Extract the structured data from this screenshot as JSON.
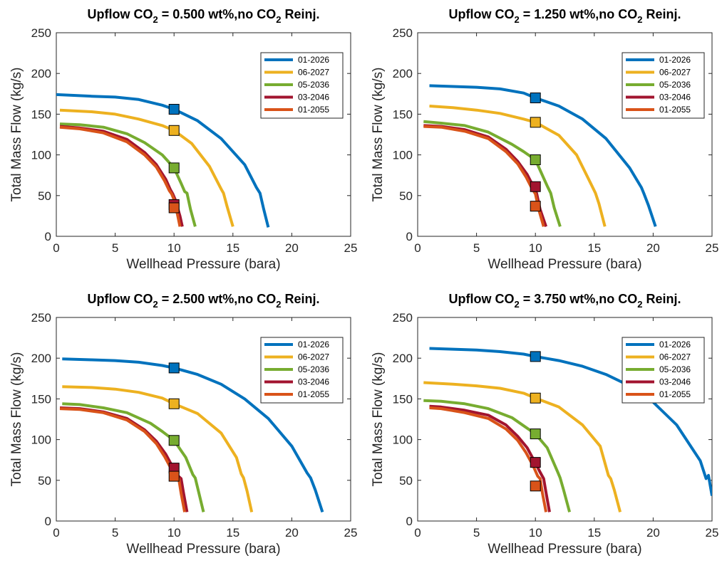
{
  "figure": {
    "title": ""
  },
  "legend_entries": [
    "01-2026",
    "06-2027",
    "05-2036",
    "03-2046",
    "01-2055"
  ],
  "series_colors": [
    "#0072BD",
    "#EDB120",
    "#77AC30",
    "#A2142F",
    "#D95319"
  ],
  "chart_data": [
    {
      "type": "line",
      "title_prefix": "Upflow CO",
      "title_sub": "2",
      "title_mid": " = 0.500 wt%,no CO",
      "title_sub2": "2",
      "title_suffix": " Reinj.",
      "xlabel": "Wellhead Pressure (bara)",
      "ylabel": "Total Mass Flow (kg/s)",
      "xlim": [
        0,
        25
      ],
      "ylim": [
        0,
        250
      ],
      "xticks": [
        0,
        5,
        10,
        15,
        20,
        25
      ],
      "yticks": [
        0,
        50,
        100,
        150,
        200,
        250
      ],
      "legend_position": "top-right",
      "series": [
        {
          "name": "01-2026",
          "x": [
            0,
            3,
            5,
            7,
            9,
            10,
            12,
            14,
            16,
            17,
            17.3,
            17.6,
            18
          ],
          "y": [
            174,
            172,
            171,
            168,
            161,
            156,
            142,
            120,
            88,
            60,
            53,
            34,
            11
          ],
          "marker": [
            10,
            156
          ]
        },
        {
          "name": "06-2027",
          "x": [
            0.3,
            3,
            5,
            7,
            9,
            10,
            11.5,
            13,
            14,
            14.2,
            14.5,
            15
          ],
          "y": [
            155,
            153,
            150,
            144,
            136,
            130,
            114,
            86,
            58,
            53,
            37,
            12
          ],
          "marker": [
            10,
            130
          ]
        },
        {
          "name": "05-2036",
          "x": [
            0.3,
            2,
            4,
            6,
            7.5,
            9,
            10,
            10.6,
            10.9,
            11.1,
            11.4,
            11.8
          ],
          "y": [
            138,
            137,
            134,
            126,
            115,
            100,
            84,
            65,
            55,
            53,
            33,
            12
          ],
          "marker": [
            10,
            84
          ]
        },
        {
          "name": "03-2046",
          "x": [
            0.3,
            2,
            4,
            6,
            7.5,
            8.5,
            9.3,
            9.7,
            9.9,
            10.1,
            10.5,
            10.7
          ],
          "y": [
            135,
            133,
            129,
            119,
            103,
            88,
            70,
            57,
            52,
            45,
            25,
            12
          ],
          "marker": [
            10,
            39
          ]
        },
        {
          "name": "01-2055",
          "x": [
            0.3,
            2,
            4,
            6,
            7.5,
            8.5,
            9.2,
            9.6,
            9.8,
            10.0,
            10.3,
            10.5
          ],
          "y": [
            134,
            132,
            127,
            116,
            100,
            85,
            68,
            56,
            52,
            45,
            26,
            12
          ],
          "marker": [
            10,
            35
          ]
        }
      ]
    },
    {
      "type": "line",
      "title_prefix": "Upflow CO",
      "title_sub": "2",
      "title_mid": " = 1.250 wt%,no CO",
      "title_sub2": "2",
      "title_suffix": " Reinj.",
      "xlabel": "Wellhead Pressure (bara)",
      "ylabel": "Total Mass Flow (kg/s)",
      "xlim": [
        0,
        25
      ],
      "ylim": [
        0,
        250
      ],
      "xticks": [
        0,
        5,
        10,
        15,
        20,
        25
      ],
      "yticks": [
        0,
        50,
        100,
        150,
        200,
        250
      ],
      "legend_position": "top-right",
      "series": [
        {
          "name": "01-2026",
          "x": [
            1,
            3,
            5,
            7,
            9,
            10,
            12,
            14,
            16,
            18,
            19,
            19.2,
            19.6,
            20.2
          ],
          "y": [
            185,
            184,
            183,
            181,
            176,
            170,
            160,
            144,
            120,
            84,
            60,
            53,
            38,
            12
          ],
          "marker": [
            10,
            170
          ]
        },
        {
          "name": "06-2027",
          "x": [
            1,
            3,
            5,
            7,
            9,
            10,
            12,
            13.5,
            14.8,
            15.1,
            15.4,
            15.9
          ],
          "y": [
            160,
            158,
            155,
            151,
            144,
            140,
            124,
            100,
            62,
            53,
            40,
            12
          ],
          "marker": [
            10,
            140
          ]
        },
        {
          "name": "05-2036",
          "x": [
            0.5,
            2,
            4,
            6,
            8,
            9,
            10,
            11,
            11.3,
            11.6,
            12.1
          ],
          "y": [
            141,
            139,
            136,
            128,
            113,
            104,
            94,
            62,
            53,
            35,
            12
          ],
          "marker": [
            10,
            94
          ]
        },
        {
          "name": "03-2046",
          "x": [
            0.5,
            2,
            4,
            6,
            7.5,
            8.5,
            9.3,
            9.8,
            10.1,
            10.4,
            10.9
          ],
          "y": [
            136,
            135,
            131,
            122,
            107,
            92,
            76,
            62,
            53,
            33,
            12
          ],
          "marker": [
            10,
            61
          ]
        },
        {
          "name": "01-2055",
          "x": [
            0.5,
            2,
            4,
            6,
            7.5,
            8.5,
            9.2,
            9.7,
            10.0,
            10.3,
            10.7
          ],
          "y": [
            135,
            134,
            129,
            120,
            104,
            89,
            73,
            59,
            52,
            32,
            12
          ],
          "marker": [
            10,
            37
          ]
        }
      ]
    },
    {
      "type": "line",
      "title_prefix": "Upflow CO",
      "title_sub": "2",
      "title_mid": " = 2.500 wt%,no CO",
      "title_sub2": "2",
      "title_suffix": " Reinj.",
      "xlabel": "Wellhead Pressure (bara)",
      "ylabel": "Total Mass Flow (kg/s)",
      "xlim": [
        0,
        25
      ],
      "ylim": [
        0,
        250
      ],
      "xticks": [
        0,
        5,
        10,
        15,
        20,
        25
      ],
      "yticks": [
        0,
        50,
        100,
        150,
        200,
        250
      ],
      "legend_position": "top-right",
      "series": [
        {
          "name": "01-2026",
          "x": [
            0.5,
            3,
            5,
            7,
            9,
            10,
            12,
            14,
            16,
            18,
            20,
            21.3,
            21.6,
            22,
            22.6
          ],
          "y": [
            199,
            198,
            197,
            195,
            191,
            188,
            180,
            168,
            150,
            126,
            92,
            59,
            53,
            38,
            11
          ],
          "marker": [
            10,
            188
          ]
        },
        {
          "name": "06-2027",
          "x": [
            0.5,
            3,
            5,
            7,
            9,
            10,
            12,
            14,
            15.3,
            15.7,
            15.9,
            16.2,
            16.6
          ],
          "y": [
            165,
            164,
            162,
            158,
            151,
            144,
            132,
            108,
            78,
            58,
            53,
            37,
            11
          ],
          "marker": [
            10,
            144
          ]
        },
        {
          "name": "05-2036",
          "x": [
            0.5,
            2,
            4,
            6,
            8,
            9,
            10,
            11,
            11.6,
            11.8,
            12.1,
            12.5
          ],
          "y": [
            144,
            143,
            139,
            133,
            120,
            110,
            99,
            78,
            57,
            53,
            35,
            11
          ],
          "marker": [
            10,
            99
          ]
        },
        {
          "name": "03-2046",
          "x": [
            0.3,
            2,
            4,
            6,
            7.5,
            8.5,
            9.3,
            9.9,
            10.3,
            10.6,
            10.8,
            11.1
          ],
          "y": [
            139,
            138,
            134,
            126,
            112,
            98,
            82,
            66,
            56,
            52,
            35,
            11
          ],
          "marker": [
            10,
            65
          ]
        },
        {
          "name": "01-2055",
          "x": [
            0.3,
            2,
            4,
            6,
            7.5,
            8.5,
            9.2,
            9.8,
            10.2,
            10.4,
            10.6,
            10.9
          ],
          "y": [
            138,
            137,
            133,
            124,
            110,
            95,
            79,
            63,
            54,
            52,
            34,
            11
          ],
          "marker": [
            10,
            55
          ]
        }
      ]
    },
    {
      "type": "line",
      "title_prefix": "Upflow CO",
      "title_sub": "2",
      "title_mid": " = 3.750 wt%,no CO",
      "title_sub2": "2",
      "title_suffix": " Reinj.",
      "xlabel": "Wellhead Pressure (bara)",
      "ylabel": "Total Mass Flow (kg/s)",
      "xlim": [
        0,
        25
      ],
      "ylim": [
        0,
        250
      ],
      "xticks": [
        0,
        5,
        10,
        15,
        20,
        25
      ],
      "yticks": [
        0,
        50,
        100,
        150,
        200,
        250
      ],
      "legend_position": "top-right",
      "series": [
        {
          "name": "01-2026",
          "x": [
            1,
            3,
            5,
            7,
            9,
            10,
            12,
            14,
            16,
            18,
            20,
            22,
            24,
            24.5,
            24.7,
            25
          ],
          "y": [
            212,
            211,
            210,
            208,
            205,
            202,
            197,
            190,
            180,
            166,
            146,
            118,
            74,
            52,
            56,
            31
          ],
          "marker": [
            10,
            202
          ]
        },
        {
          "name": "06-2027",
          "x": [
            0.5,
            3,
            5,
            7,
            9,
            10,
            12,
            14,
            15.5,
            16.2,
            16.4,
            16.7,
            17.2
          ],
          "y": [
            170,
            168,
            166,
            163,
            157,
            151,
            140,
            118,
            92,
            56,
            52,
            38,
            11
          ],
          "marker": [
            10,
            151
          ]
        },
        {
          "name": "05-2036",
          "x": [
            0.5,
            2,
            4,
            6,
            8,
            9,
            10,
            11,
            11.9,
            12.1,
            12.4,
            12.9
          ],
          "y": [
            148,
            147,
            144,
            138,
            127,
            117,
            107,
            90,
            60,
            53,
            38,
            11
          ],
          "marker": [
            10,
            107
          ]
        },
        {
          "name": "03-2046",
          "x": [
            1,
            2,
            4,
            6,
            7.5,
            8.5,
            9.3,
            9.9,
            10.4,
            10.7,
            10.9,
            11.2
          ],
          "y": [
            141,
            140,
            136,
            130,
            118,
            104,
            90,
            74,
            60,
            52,
            35,
            11
          ],
          "marker": [
            10,
            72
          ]
        },
        {
          "name": "01-2055",
          "x": [
            1,
            2,
            4,
            6,
            7.5,
            8.5,
            9.2,
            9.8,
            10.2,
            10.4,
            10.6,
            10.9
          ],
          "y": [
            139,
            138,
            133,
            126,
            113,
            99,
            84,
            68,
            55,
            52,
            34,
            11
          ],
          "marker": [
            10,
            43
          ]
        }
      ]
    }
  ]
}
